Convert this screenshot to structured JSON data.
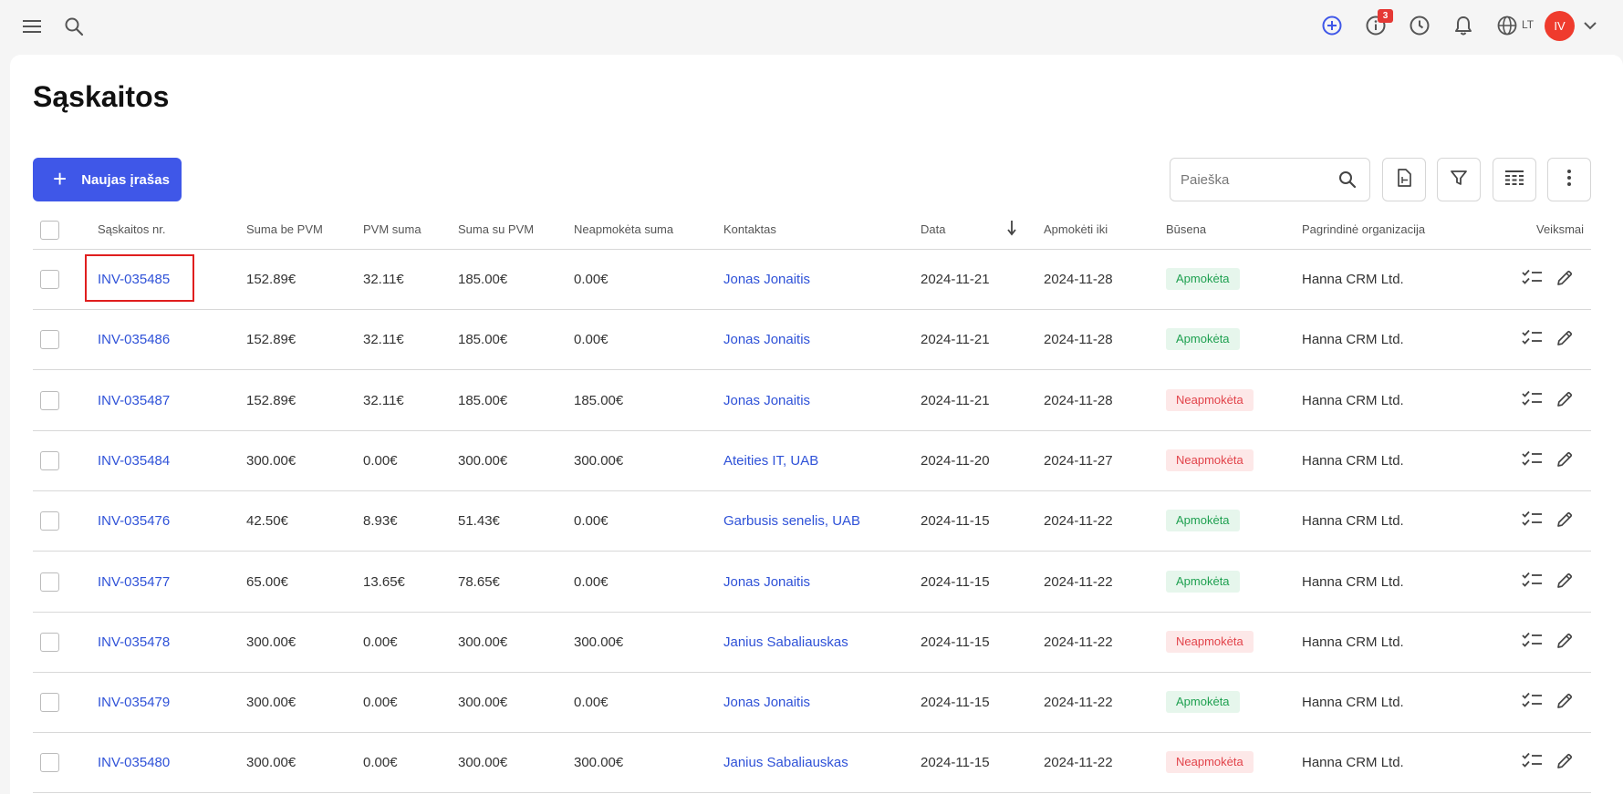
{
  "topbar": {
    "notifications_count": "3",
    "language": "LT",
    "user_initials": "IV",
    "icons": [
      "menu-icon",
      "search-icon",
      "add-circle-icon",
      "info-icon",
      "clock-icon",
      "bell-icon",
      "globe-icon",
      "chevron-down-icon"
    ]
  },
  "page": {
    "title": "Sąskaitos",
    "new_button_label": "Naujas įrašas",
    "search_placeholder": "Paieška"
  },
  "colors": {
    "accent": "#3f57e8",
    "link": "#2f52d8",
    "paid_bg": "#e6f6ec",
    "paid_text": "#1ea050",
    "unpaid_bg": "#fde8e8",
    "unpaid_text": "#e2434a",
    "avatar": "#ef3b2d"
  },
  "table": {
    "headers": {
      "number": "Sąskaitos nr.",
      "net": "Suma be PVM",
      "vat": "PVM suma",
      "gross": "Suma su PVM",
      "unpaid": "Neapmokėta suma",
      "contact": "Kontaktas",
      "date": "Data",
      "due": "Apmokėti iki",
      "status": "Būsena",
      "org": "Pagrindinė organizacija",
      "actions": "Veiksmai"
    },
    "sort_column": "Data",
    "rows": [
      {
        "number": "INV-035485",
        "net": "152.89€",
        "vat": "32.11€",
        "gross": "185.00€",
        "unpaid": "0.00€",
        "contact": "Jonas Jonaitis",
        "date": "2024-11-21",
        "due": "2024-11-28",
        "status": "Apmokėta",
        "paid": true,
        "org": "Hanna CRM Ltd."
      },
      {
        "number": "INV-035486",
        "net": "152.89€",
        "vat": "32.11€",
        "gross": "185.00€",
        "unpaid": "0.00€",
        "contact": "Jonas Jonaitis",
        "date": "2024-11-21",
        "due": "2024-11-28",
        "status": "Apmokėta",
        "paid": true,
        "org": "Hanna CRM Ltd."
      },
      {
        "number": "INV-035487",
        "net": "152.89€",
        "vat": "32.11€",
        "gross": "185.00€",
        "unpaid": "185.00€",
        "contact": "Jonas Jonaitis",
        "date": "2024-11-21",
        "due": "2024-11-28",
        "status": "Neapmokėta",
        "paid": false,
        "org": "Hanna CRM Ltd."
      },
      {
        "number": "INV-035484",
        "net": "300.00€",
        "vat": "0.00€",
        "gross": "300.00€",
        "unpaid": "300.00€",
        "contact": "Ateities IT, UAB",
        "date": "2024-11-20",
        "due": "2024-11-27",
        "status": "Neapmokėta",
        "paid": false,
        "org": "Hanna CRM Ltd."
      },
      {
        "number": "INV-035476",
        "net": "42.50€",
        "vat": "8.93€",
        "gross": "51.43€",
        "unpaid": "0.00€",
        "contact": "Garbusis senelis, UAB",
        "date": "2024-11-15",
        "due": "2024-11-22",
        "status": "Apmokėta",
        "paid": true,
        "org": "Hanna CRM Ltd."
      },
      {
        "number": "INV-035477",
        "net": "65.00€",
        "vat": "13.65€",
        "gross": "78.65€",
        "unpaid": "0.00€",
        "contact": "Jonas Jonaitis",
        "date": "2024-11-15",
        "due": "2024-11-22",
        "status": "Apmokėta",
        "paid": true,
        "org": "Hanna CRM Ltd."
      },
      {
        "number": "INV-035478",
        "net": "300.00€",
        "vat": "0.00€",
        "gross": "300.00€",
        "unpaid": "300.00€",
        "contact": "Janius Sabaliauskas",
        "date": "2024-11-15",
        "due": "2024-11-22",
        "status": "Neapmokėta",
        "paid": false,
        "org": "Hanna CRM Ltd."
      },
      {
        "number": "INV-035479",
        "net": "300.00€",
        "vat": "0.00€",
        "gross": "300.00€",
        "unpaid": "0.00€",
        "contact": "Jonas Jonaitis",
        "date": "2024-11-15",
        "due": "2024-11-22",
        "status": "Apmokėta",
        "paid": true,
        "org": "Hanna CRM Ltd."
      },
      {
        "number": "INV-035480",
        "net": "300.00€",
        "vat": "0.00€",
        "gross": "300.00€",
        "unpaid": "300.00€",
        "contact": "Janius Sabaliauskas",
        "date": "2024-11-15",
        "due": "2024-11-22",
        "status": "Neapmokėta",
        "paid": false,
        "org": "Hanna CRM Ltd."
      }
    ]
  }
}
